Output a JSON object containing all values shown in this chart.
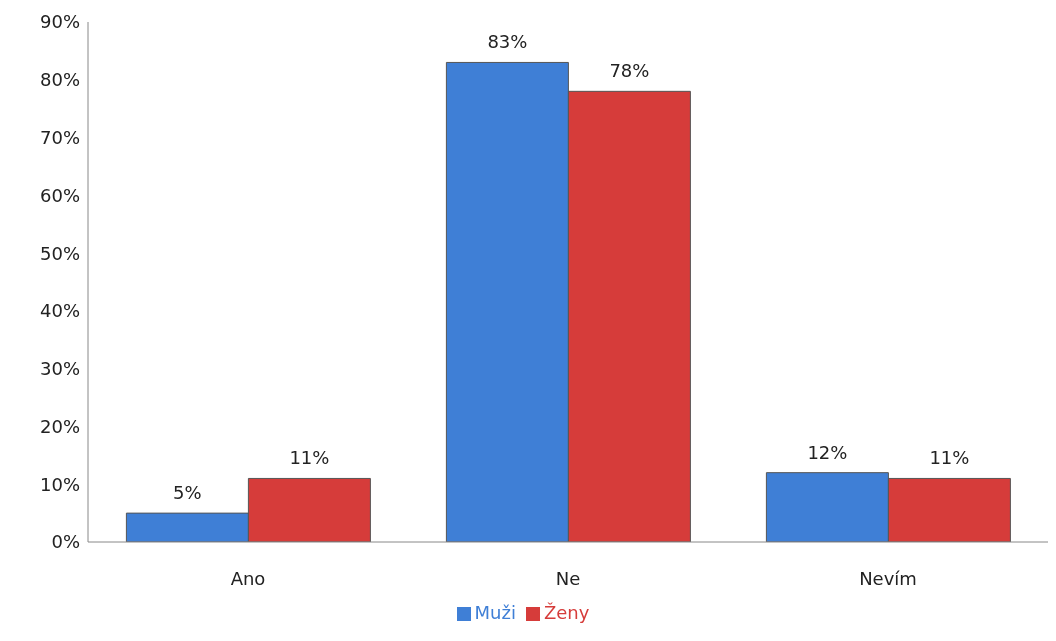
{
  "chart_data": {
    "type": "bar",
    "categories": [
      "Ano",
      "Ne",
      "Nevím"
    ],
    "series": [
      {
        "name": "Muži",
        "color": "#3f7fd6",
        "values": [
          5,
          83,
          12
        ],
        "value_labels": [
          "5%",
          "83%",
          "12%"
        ]
      },
      {
        "name": "Ženy",
        "color": "#d63c3a",
        "values": [
          11,
          78,
          11
        ],
        "value_labels": [
          "11%",
          "78%",
          "11%"
        ]
      }
    ],
    "ylim": [
      0,
      90
    ],
    "yticks": [
      {
        "value": 0,
        "label": "0%"
      },
      {
        "value": 10,
        "label": "10%"
      },
      {
        "value": 20,
        "label": "20%"
      },
      {
        "value": 30,
        "label": "30%"
      },
      {
        "value": 40,
        "label": "40%"
      },
      {
        "value": 50,
        "label": "50%"
      },
      {
        "value": 60,
        "label": "60%"
      },
      {
        "value": 70,
        "label": "70%"
      },
      {
        "value": 80,
        "label": "80%"
      },
      {
        "value": 90,
        "label": "90%"
      }
    ],
    "grid": false,
    "legend": "bottom"
  }
}
